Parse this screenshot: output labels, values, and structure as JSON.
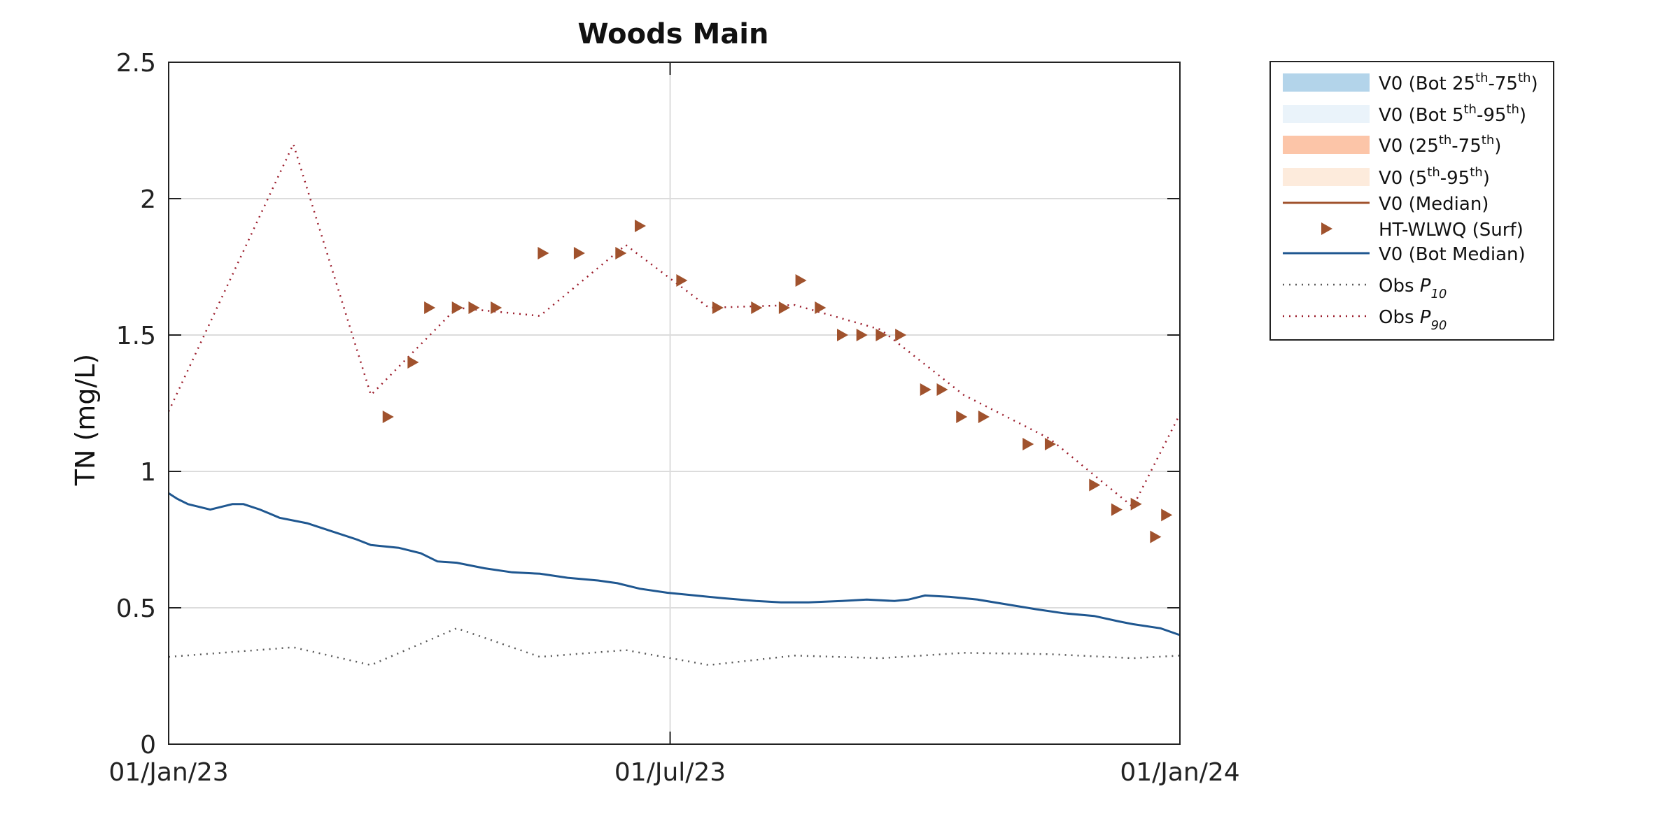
{
  "colors": {
    "bot_iqr": "#b3d4ea",
    "bot_90": "#eaf3fa",
    "surf_iqr": "#fcc5a8",
    "surf_90": "#fdebdc",
    "median": "#a0522d",
    "obs": "#a0522d",
    "bot_median": "#1f5790",
    "p10": "#5a5a5a",
    "p90": "#9b1b2a",
    "grid": "#dcdcdc",
    "axis": "#222222"
  },
  "chart_data": {
    "type": "line",
    "title": "Woods Main",
    "ylabel": "TN (mg/L)",
    "xlabel": "",
    "x_range": [
      "2023-01-01",
      "2024-01-01"
    ],
    "ylim": [
      0,
      2.5
    ],
    "x_ticks": [
      {
        "date": "2023-01-01",
        "label": "01/Jan/23"
      },
      {
        "date": "2023-07-01",
        "label": "01/Jul/23"
      },
      {
        "date": "2024-01-01",
        "label": "01/Jan/24"
      }
    ],
    "y_ticks": [
      {
        "value": 0,
        "label": "0"
      },
      {
        "value": 0.5,
        "label": "0.5"
      },
      {
        "value": 1,
        "label": "1"
      },
      {
        "value": 1.5,
        "label": "1.5"
      },
      {
        "value": 2,
        "label": "2"
      },
      {
        "value": 2.5,
        "label": "2.5"
      }
    ],
    "grid": true,
    "legend_position": "outside-right",
    "legend": [
      {
        "kind": "band",
        "color_key": "bot_iqr",
        "text": "V0 (Bot 25",
        "sup1": "th",
        "mid": "-75",
        "sup2": "th",
        "end": ")"
      },
      {
        "kind": "band",
        "color_key": "bot_90",
        "text": "V0 (Bot 5",
        "sup1": "th",
        "mid": "-95",
        "sup2": "th",
        "end": ")"
      },
      {
        "kind": "band",
        "color_key": "surf_iqr",
        "text": "V0 (25",
        "sup1": "th",
        "mid": "-75",
        "sup2": "th",
        "end": ")"
      },
      {
        "kind": "band",
        "color_key": "surf_90",
        "text": "V0 (5",
        "sup1": "th",
        "mid": "-95",
        "sup2": "th",
        "end": ")"
      },
      {
        "kind": "line",
        "color_key": "median",
        "text": "V0 (Median)"
      },
      {
        "kind": "marker",
        "color_key": "obs",
        "text": "HT-WLWQ (Surf)"
      },
      {
        "kind": "line",
        "color_key": "bot_median",
        "text": "V0 (Bot Median)"
      },
      {
        "kind": "dotted",
        "color_key": "p10",
        "text": "Obs ",
        "italic": "P",
        "sub": "10"
      },
      {
        "kind": "dotted",
        "color_key": "p90",
        "text": "Obs ",
        "italic": "P",
        "sub": "90"
      }
    ],
    "series": [
      {
        "name": "V0 (Bot Median)",
        "style": "line",
        "color_key": "bot_median",
        "points": [
          [
            "2023-01-01",
            0.92
          ],
          [
            "2023-01-04",
            0.9
          ],
          [
            "2023-01-08",
            0.88
          ],
          [
            "2023-01-12",
            0.87
          ],
          [
            "2023-01-16",
            0.86
          ],
          [
            "2023-01-20",
            0.87
          ],
          [
            "2023-01-24",
            0.88
          ],
          [
            "2023-01-28",
            0.88
          ],
          [
            "2023-02-03",
            0.86
          ],
          [
            "2023-02-10",
            0.83
          ],
          [
            "2023-02-20",
            0.81
          ],
          [
            "2023-03-01",
            0.78
          ],
          [
            "2023-03-10",
            0.75
          ],
          [
            "2023-03-15",
            0.73
          ],
          [
            "2023-03-25",
            0.72
          ],
          [
            "2023-04-02",
            0.7
          ],
          [
            "2023-04-08",
            0.67
          ],
          [
            "2023-04-15",
            0.665
          ],
          [
            "2023-04-25",
            0.645
          ],
          [
            "2023-05-05",
            0.63
          ],
          [
            "2023-05-15",
            0.625
          ],
          [
            "2023-05-25",
            0.61
          ],
          [
            "2023-06-05",
            0.6
          ],
          [
            "2023-06-12",
            0.59
          ],
          [
            "2023-06-20",
            0.57
          ],
          [
            "2023-06-30",
            0.555
          ],
          [
            "2023-07-10",
            0.545
          ],
          [
            "2023-07-20",
            0.535
          ],
          [
            "2023-08-01",
            0.525
          ],
          [
            "2023-08-10",
            0.52
          ],
          [
            "2023-08-20",
            0.52
          ],
          [
            "2023-09-01",
            0.525
          ],
          [
            "2023-09-10",
            0.53
          ],
          [
            "2023-09-20",
            0.525
          ],
          [
            "2023-09-25",
            0.53
          ],
          [
            "2023-10-01",
            0.545
          ],
          [
            "2023-10-10",
            0.54
          ],
          [
            "2023-10-20",
            0.53
          ],
          [
            "2023-11-01",
            0.51
          ],
          [
            "2023-11-10",
            0.495
          ],
          [
            "2023-11-20",
            0.48
          ],
          [
            "2023-12-01",
            0.47
          ],
          [
            "2023-12-10",
            0.45
          ],
          [
            "2023-12-15",
            0.44
          ],
          [
            "2023-12-25",
            0.425
          ],
          [
            "2024-01-01",
            0.4
          ]
        ]
      },
      {
        "name": "Obs P10",
        "style": "dotted",
        "color_key": "p10",
        "points": [
          [
            "2023-01-01",
            0.32
          ],
          [
            "2023-02-15",
            0.355
          ],
          [
            "2023-03-15",
            0.29
          ],
          [
            "2023-04-15",
            0.425
          ],
          [
            "2023-05-15",
            0.32
          ],
          [
            "2023-06-15",
            0.345
          ],
          [
            "2023-07-15",
            0.29
          ],
          [
            "2023-08-15",
            0.325
          ],
          [
            "2023-09-15",
            0.315
          ],
          [
            "2023-10-15",
            0.335
          ],
          [
            "2023-11-15",
            0.33
          ],
          [
            "2023-12-15",
            0.315
          ],
          [
            "2024-01-01",
            0.325
          ]
        ]
      },
      {
        "name": "Obs P90",
        "style": "dotted",
        "color_key": "p90",
        "points": [
          [
            "2023-01-01",
            1.22
          ],
          [
            "2023-02-15",
            2.2
          ],
          [
            "2023-03-15",
            1.28
          ],
          [
            "2023-04-15",
            1.6
          ],
          [
            "2023-05-15",
            1.57
          ],
          [
            "2023-06-15",
            1.83
          ],
          [
            "2023-07-15",
            1.6
          ],
          [
            "2023-08-15",
            1.61
          ],
          [
            "2023-09-15",
            1.52
          ],
          [
            "2023-10-15",
            1.28
          ],
          [
            "2023-11-15",
            1.12
          ],
          [
            "2023-12-15",
            0.87
          ],
          [
            "2024-01-01",
            1.21
          ]
        ]
      }
    ],
    "observations": {
      "name": "HT-WLWQ (Surf)",
      "color_key": "obs",
      "points": [
        [
          "2023-03-21",
          1.2
        ],
        [
          "2023-03-30",
          1.4
        ],
        [
          "2023-04-05",
          1.6
        ],
        [
          "2023-04-15",
          1.6
        ],
        [
          "2023-04-21",
          1.6
        ],
        [
          "2023-04-29",
          1.6
        ],
        [
          "2023-05-16",
          1.8
        ],
        [
          "2023-05-29",
          1.8
        ],
        [
          "2023-06-13",
          1.8
        ],
        [
          "2023-06-20",
          1.9
        ],
        [
          "2023-07-05",
          1.7
        ],
        [
          "2023-07-18",
          1.6
        ],
        [
          "2023-08-01",
          1.6
        ],
        [
          "2023-08-11",
          1.6
        ],
        [
          "2023-08-17",
          1.7
        ],
        [
          "2023-08-24",
          1.6
        ],
        [
          "2023-09-01",
          1.5
        ],
        [
          "2023-09-08",
          1.5
        ],
        [
          "2023-09-15",
          1.5
        ],
        [
          "2023-09-22",
          1.5
        ],
        [
          "2023-10-01",
          1.3
        ],
        [
          "2023-10-07",
          1.3
        ],
        [
          "2023-10-14",
          1.2
        ],
        [
          "2023-10-22",
          1.2
        ],
        [
          "2023-11-07",
          1.1
        ],
        [
          "2023-11-15",
          1.1
        ],
        [
          "2023-12-01",
          0.95
        ],
        [
          "2023-12-09",
          0.86
        ],
        [
          "2023-12-16",
          0.88
        ],
        [
          "2023-12-23",
          0.76
        ],
        [
          "2023-12-27",
          0.84
        ]
      ]
    }
  }
}
